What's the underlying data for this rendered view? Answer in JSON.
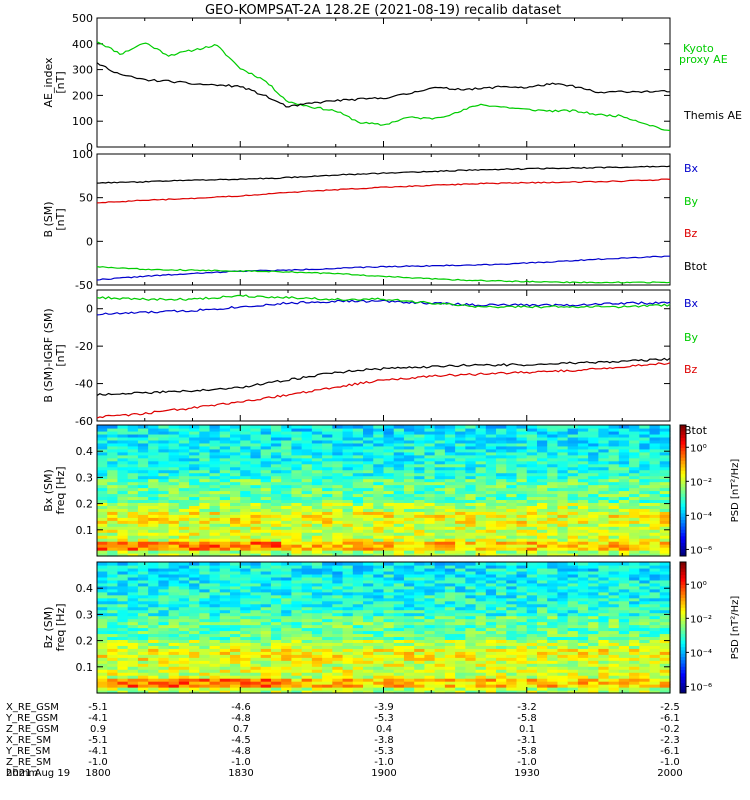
{
  "figure": {
    "title": "GEO-KOMPSAT-2A 128.2E (2021-08-19) recalib dataset"
  },
  "colors": {
    "kyoto_green": "#00cc00",
    "bx_blue": "#0000cc",
    "by_green": "#00cc00",
    "bz_red": "#dd0000",
    "btot_black": "#000000"
  },
  "chart_data": [
    {
      "id": "ae",
      "type": "line",
      "ylabel": [
        "AE_index",
        "[nT]"
      ],
      "ylim": [
        0,
        500
      ],
      "yticks": [
        0,
        100,
        200,
        300,
        400,
        500
      ],
      "x": [
        1800,
        1805,
        1810,
        1815,
        1820,
        1825,
        1830,
        1835,
        1840,
        1845,
        1850,
        1855,
        1900,
        1905,
        1910,
        1915,
        1920,
        1925,
        1930,
        1935,
        1940,
        1945,
        1950,
        1955,
        2000
      ],
      "series": [
        {
          "name": "Kyoto proxy AE",
          "color": "#00cc00",
          "values": [
            410,
            360,
            405,
            355,
            375,
            395,
            305,
            260,
            175,
            155,
            140,
            95,
            85,
            115,
            110,
            130,
            165,
            155,
            145,
            140,
            140,
            125,
            120,
            90,
            60
          ]
        },
        {
          "name": "Themis AE",
          "color": "#000000",
          "values": [
            325,
            280,
            260,
            255,
            245,
            240,
            235,
            200,
            155,
            170,
            180,
            185,
            190,
            205,
            230,
            225,
            225,
            235,
            230,
            245,
            235,
            210,
            215,
            215,
            215
          ]
        }
      ]
    },
    {
      "id": "b",
      "type": "line",
      "ylabel": [
        "B (SM)",
        "[nT]"
      ],
      "ylim": [
        -50,
        100
      ],
      "yticks": [
        -50,
        0,
        50,
        100
      ],
      "x": [
        1800,
        1810,
        1820,
        1830,
        1840,
        1850,
        1900,
        1910,
        1920,
        1930,
        1940,
        1950,
        2000
      ],
      "series": [
        {
          "name": "Bx",
          "color": "#0000cc",
          "values": [
            -44,
            -40,
            -37,
            -34,
            -33,
            -31,
            -29,
            -28,
            -27,
            -25,
            -22,
            -19,
            -17
          ]
        },
        {
          "name": "By",
          "color": "#00cc00",
          "values": [
            -29,
            -32,
            -33,
            -34,
            -35,
            -37,
            -40,
            -43,
            -45,
            -46,
            -47,
            -47,
            -47
          ]
        },
        {
          "name": "Bz",
          "color": "#dd0000",
          "values": [
            44,
            47,
            49,
            52,
            56,
            59,
            62,
            64,
            66,
            67,
            68,
            69,
            71
          ]
        },
        {
          "name": "Btot",
          "color": "#000000",
          "values": [
            67,
            68,
            70,
            71,
            73,
            76,
            78,
            80,
            82,
            83,
            84,
            85,
            86
          ]
        }
      ],
      "legend_labels": [
        "Bx",
        "By",
        "Bz",
        "Btot"
      ]
    },
    {
      "id": "db",
      "type": "line",
      "ylabel": [
        "B (SM)-IGRF (SM)",
        "[nT]"
      ],
      "ylim": [
        -60,
        10
      ],
      "yticks": [
        -60,
        -40,
        -20,
        0
      ],
      "x": [
        1800,
        1810,
        1820,
        1830,
        1840,
        1850,
        1900,
        1910,
        1920,
        1930,
        1940,
        1950,
        2000
      ],
      "series": [
        {
          "name": "Bx",
          "color": "#0000cc",
          "values": [
            -3,
            -2,
            -1,
            1,
            3,
            4,
            4,
            3,
            2,
            2,
            2,
            3,
            3
          ]
        },
        {
          "name": "By",
          "color": "#00cc00",
          "values": [
            6,
            5,
            5,
            7,
            6,
            5,
            5,
            3,
            1,
            1,
            1,
            1,
            2
          ]
        },
        {
          "name": "Bz",
          "color": "#dd0000",
          "values": [
            -58,
            -56,
            -53,
            -50,
            -46,
            -42,
            -38,
            -36,
            -35,
            -34,
            -33,
            -31,
            -29
          ]
        },
        {
          "name": "Btot",
          "color": "#000000",
          "values": [
            -46,
            -45,
            -44,
            -42,
            -38,
            -34,
            -32,
            -31,
            -30,
            -30,
            -29,
            -28,
            -27
          ]
        }
      ],
      "legend_labels": [
        "Bx",
        "By",
        "Bz",
        "Btot"
      ]
    },
    {
      "id": "spec_bx",
      "type": "heatmap",
      "ylabel": [
        "Bx (SM)",
        "freq [Hz]"
      ],
      "ylim": [
        0,
        0.5
      ],
      "yticks": [
        0.1,
        0.2,
        0.3,
        0.4
      ],
      "colorbar_label": "PSD [nT²/Hz]",
      "colorbar_ticks": [
        "10⁰",
        "10⁻²",
        "10⁻⁴",
        "10⁻⁶"
      ]
    },
    {
      "id": "spec_bz",
      "type": "heatmap",
      "ylabel": [
        "Bz (SM)",
        "freq [Hz]"
      ],
      "ylim": [
        0,
        0.5
      ],
      "yticks": [
        0.1,
        0.2,
        0.3,
        0.4
      ],
      "colorbar_label": "PSD [nT²/Hz]",
      "colorbar_ticks": [
        "10⁰",
        "10⁻²",
        "10⁻⁴",
        "10⁻⁶"
      ]
    }
  ],
  "ephemeris": {
    "rows": [
      {
        "label": "X_RE_GSM",
        "values": [
          "-5.1",
          "-4.6",
          "-3.9",
          "-3.2",
          "-2.5"
        ]
      },
      {
        "label": "Y_RE_GSM",
        "values": [
          "-4.1",
          "-4.8",
          "-5.3",
          "-5.8",
          "-6.1"
        ]
      },
      {
        "label": "Z_RE_GSM",
        "values": [
          "0.9",
          "0.7",
          "0.4",
          "0.1",
          "-0.2"
        ]
      },
      {
        "label": "X_RE_SM",
        "values": [
          "-5.1",
          "-4.5",
          "-3.8",
          "-3.1",
          "-2.3"
        ]
      },
      {
        "label": "Y_RE_SM",
        "values": [
          "-4.1",
          "-4.8",
          "-5.3",
          "-5.8",
          "-6.1"
        ]
      },
      {
        "label": "Z_RE_SM",
        "values": [
          "-1.0",
          "-1.0",
          "-1.0",
          "-1.0",
          "-1.0"
        ]
      },
      {
        "label": "hhmm",
        "values": [
          "1800",
          "1830",
          "1900",
          "1930",
          "2000"
        ]
      }
    ],
    "date": "2021 Aug 19"
  }
}
